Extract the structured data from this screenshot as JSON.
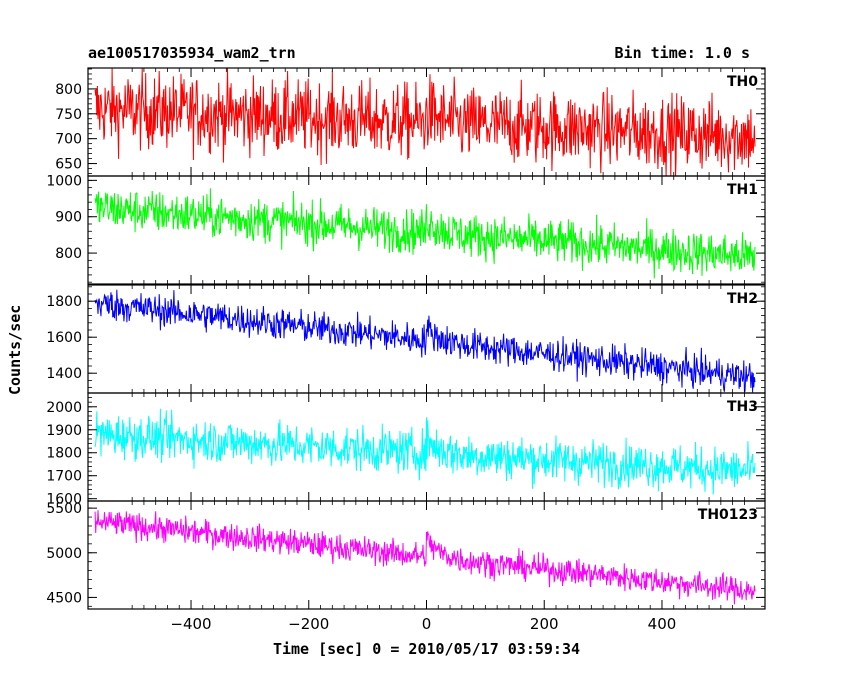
{
  "header": {
    "left_title": "ae100517035934_wam2_trn",
    "right_title": "Bin time: 1.0 s"
  },
  "chart_data": {
    "type": "line",
    "xlabel": "Time [sec] 0 = 2010/05/17 03:59:34",
    "ylabel": "Counts/sec",
    "xlim": [
      -575,
      575
    ],
    "x_ticks": [
      -400,
      -200,
      0,
      200,
      400
    ],
    "x_range": [
      -563,
      558
    ],
    "bin_time": 1.0,
    "panels": [
      {
        "name": "TH0",
        "color": "#ff0000",
        "ylim": [
          625,
          842
        ],
        "yticks": [
          650,
          700,
          750,
          800
        ],
        "trend_start": 760,
        "trend_end": 705,
        "noise": 38,
        "burst": 25
      },
      {
        "name": "TH1",
        "color": "#00ff00",
        "ylim": [
          715,
          1012
        ],
        "yticks": [
          800,
          900,
          1000
        ],
        "trend_start": 925,
        "trend_end": 790,
        "noise": 30,
        "burst": 40
      },
      {
        "name": "TH2",
        "color": "#0000ff",
        "ylim": [
          1290,
          1890
        ],
        "yticks": [
          1400,
          1600,
          1800
        ],
        "trend_start": 1790,
        "trend_end": 1375,
        "noise": 45,
        "burst": 70
      },
      {
        "name": "TH3",
        "color": "#00ffff",
        "ylim": [
          1590,
          2060
        ],
        "yticks": [
          1600,
          1700,
          1800,
          1900,
          2000
        ],
        "trend_start": 1880,
        "trend_end": 1720,
        "noise": 48,
        "burst": 60
      },
      {
        "name": "TH0123",
        "color": "#ff00ff",
        "ylim": [
          4370,
          5580
        ],
        "yticks": [
          4500,
          5000,
          5500
        ],
        "trend_start": 5350,
        "trend_end": 4570,
        "noise": 75,
        "burst": 200
      }
    ]
  }
}
